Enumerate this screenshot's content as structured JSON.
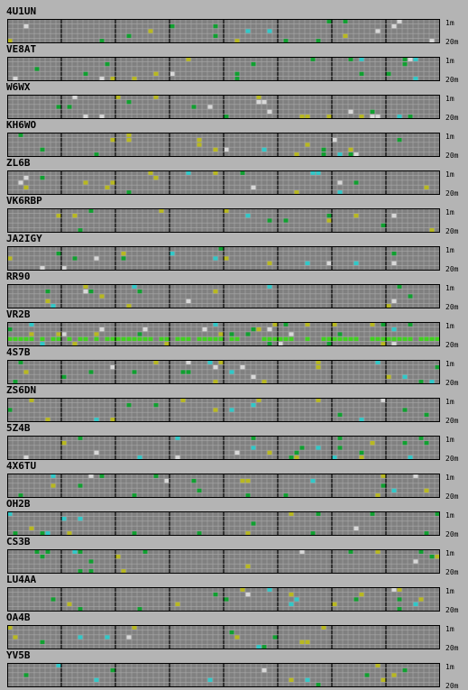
{
  "stations": [
    {
      "call": "4U1UN"
    },
    {
      "call": "VE8AT"
    },
    {
      "call": "W6WX"
    },
    {
      "call": "KH6WO"
    },
    {
      "call": "ZL6B"
    },
    {
      "call": "VK6RBP"
    },
    {
      "call": "JA2IGY"
    },
    {
      "call": "RR90"
    },
    {
      "call": "VR2B"
    },
    {
      "call": "4S7B"
    },
    {
      "call": "ZS6DN"
    },
    {
      "call": "5Z4B"
    },
    {
      "call": "4X6TU"
    },
    {
      "call": "OH2B"
    },
    {
      "call": "CS3B"
    },
    {
      "call": "LU4AA"
    },
    {
      "call": "OA4B"
    },
    {
      "call": "YV5B"
    }
  ],
  "band_labels": {
    "top": "1m",
    "bottom": "20m"
  },
  "grid": {
    "blocks": 8,
    "columns_per_block": 10,
    "bands": 5
  },
  "colors": {
    "background": "#b4b4b4",
    "cell": "#808080",
    "gridline": "#a8a8a8",
    "separator": "#000000",
    "signal_yellow": "#b8b820",
    "signal_green": "#10a030",
    "signal_bright_green": "#40d020",
    "signal_cyan": "#30c8c8",
    "signal_white": "#d8d8d8"
  }
}
